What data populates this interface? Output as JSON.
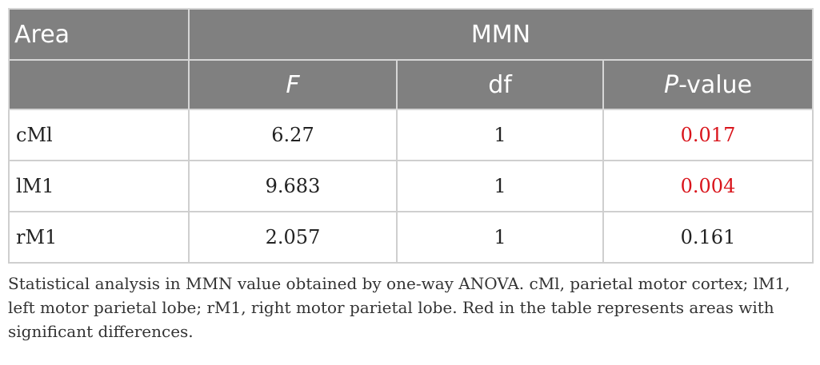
{
  "table": {
    "header_area": "Area",
    "header_group": "MMN",
    "col_f": "F",
    "col_df": "df",
    "col_p_italic": "P",
    "col_p_suffix": "-value",
    "rows": [
      {
        "area": "cMl",
        "f": "6.27",
        "df": "1",
        "p": "0.017",
        "significant": true
      },
      {
        "area": "lM1",
        "f": "9.683",
        "df": "1",
        "p": "0.004",
        "significant": true
      },
      {
        "area": "rM1",
        "f": "2.057",
        "df": "1",
        "p": "0.161",
        "significant": false
      }
    ]
  },
  "caption": "Statistical analysis in MMN value obtained by one-way ANOVA. cMl, parietal motor cortex; lM1, left motor parietal lobe; rM1, right motor parietal lobe. Red in the table represents areas with significant differences.",
  "colors": {
    "header_bg": "#808080",
    "significant_text": "#d9141b"
  }
}
